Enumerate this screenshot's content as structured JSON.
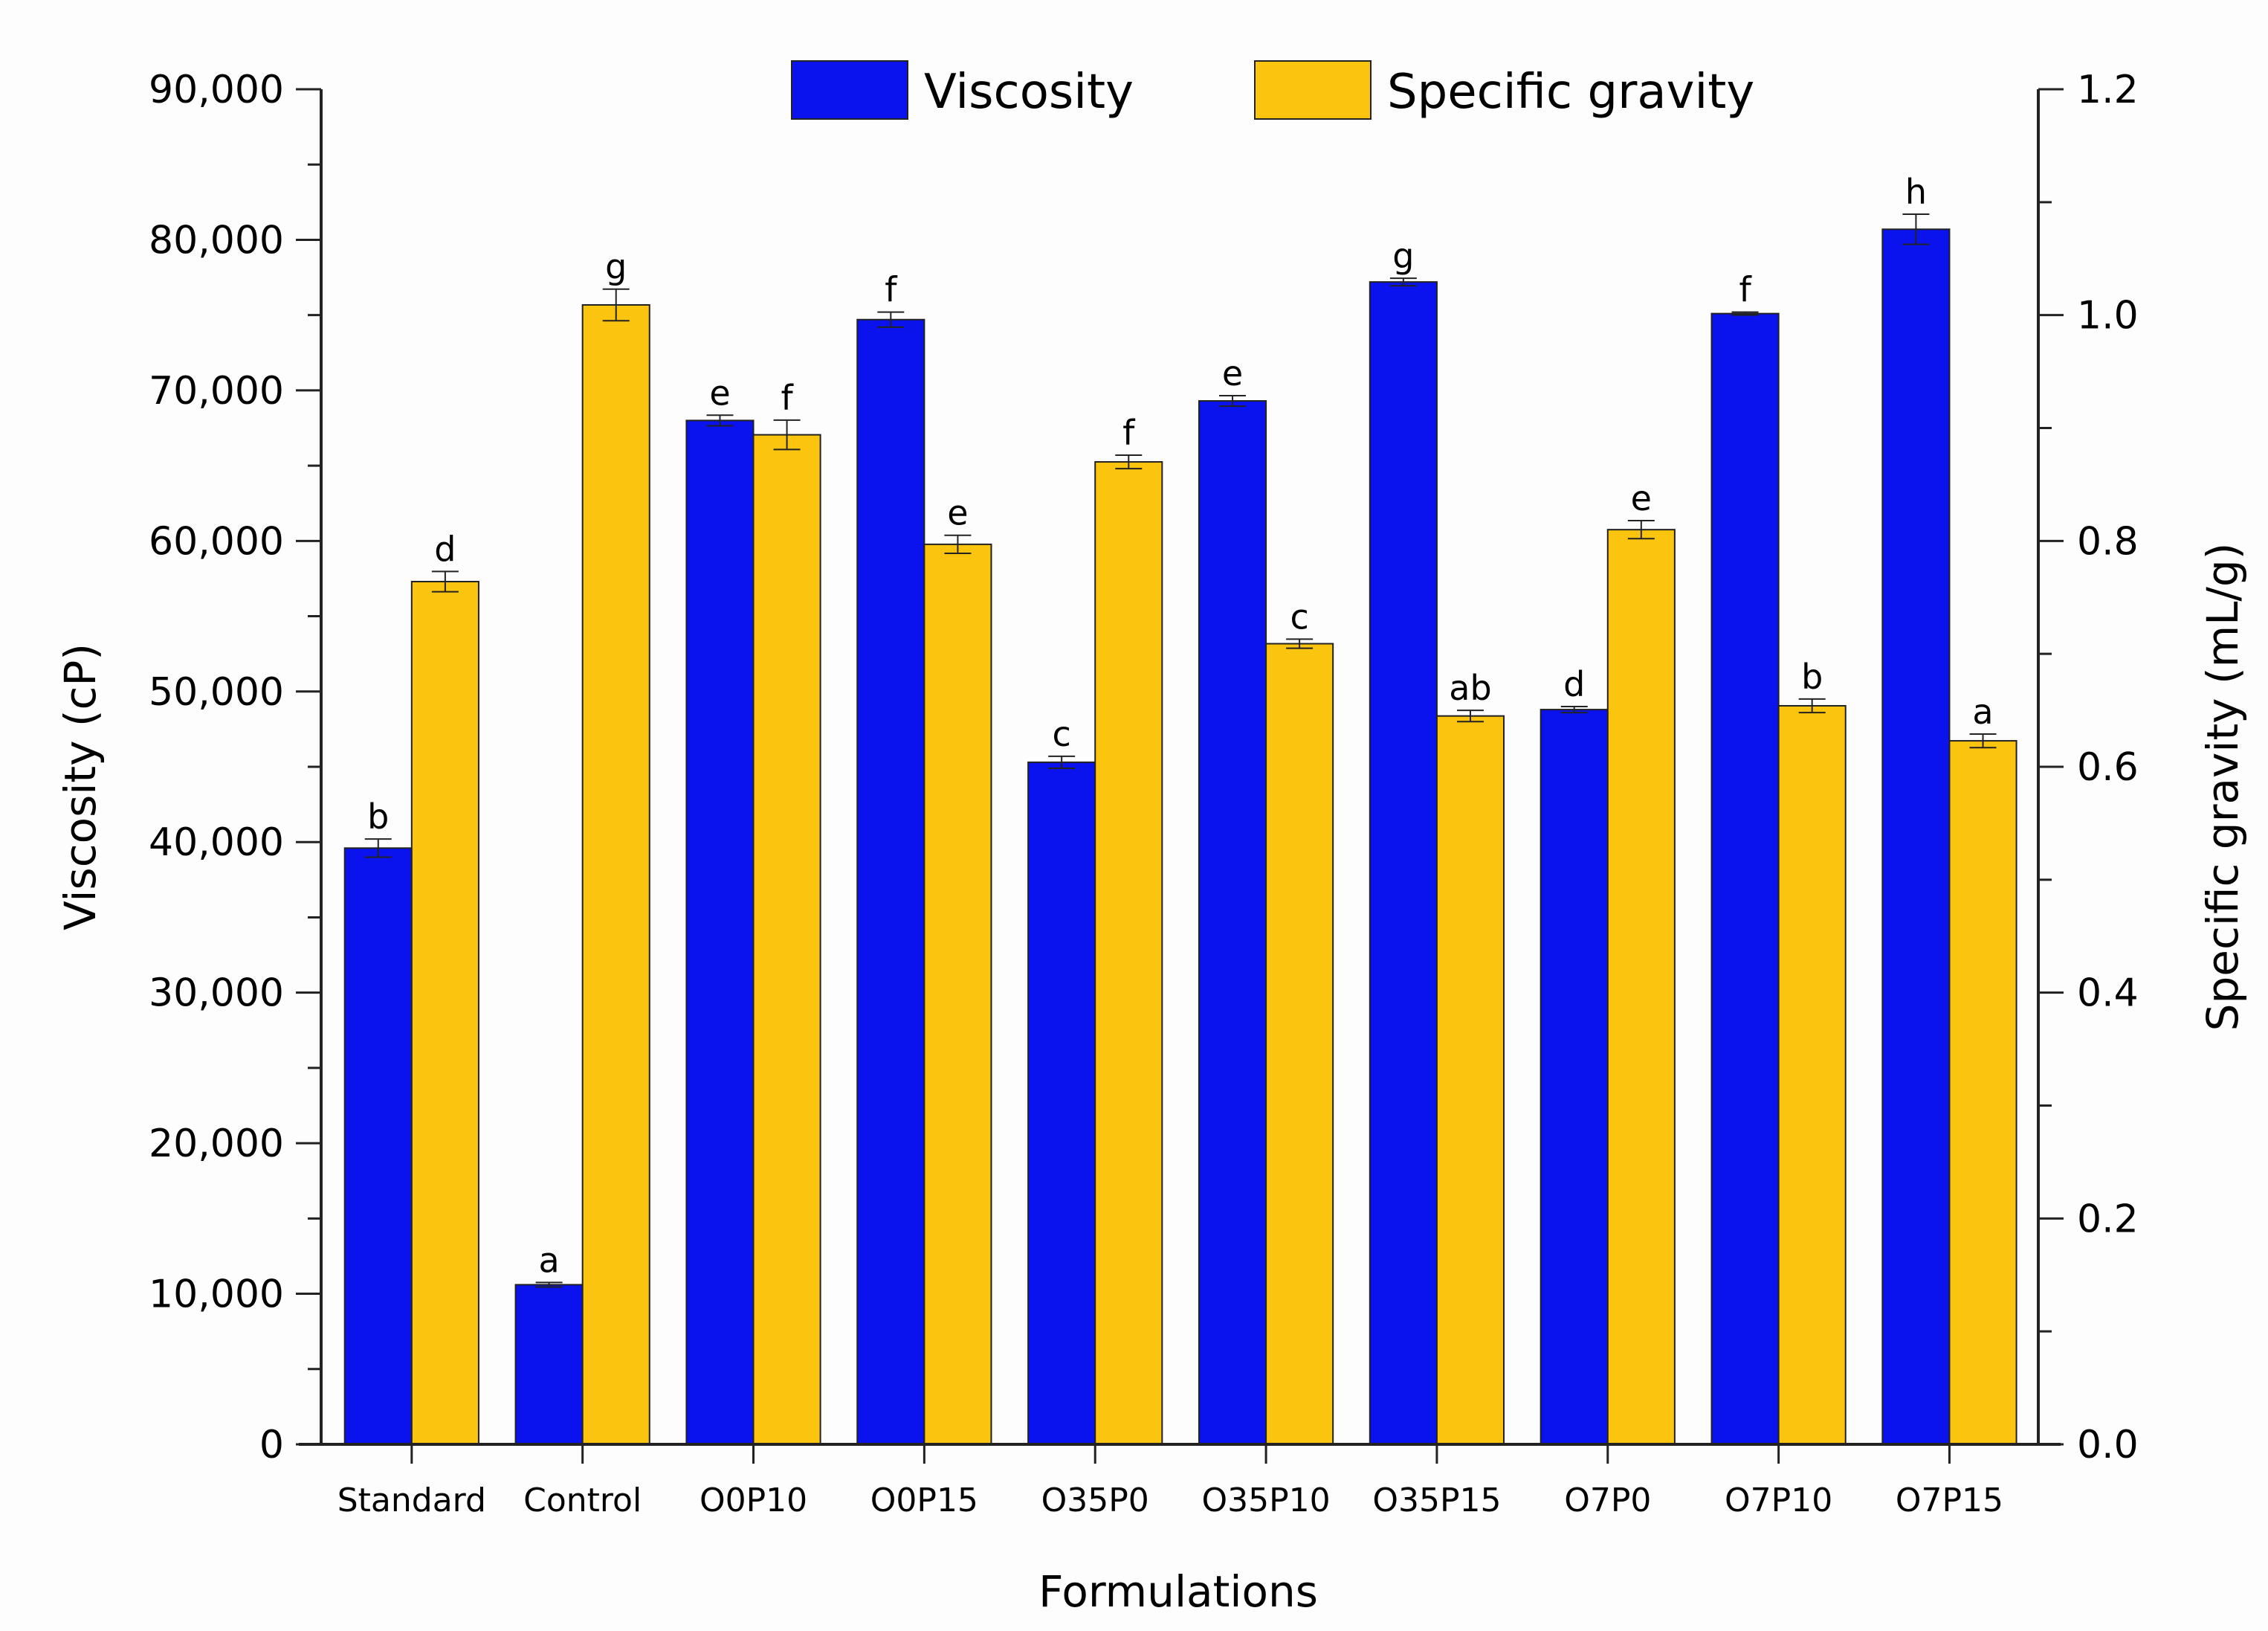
{
  "chart_data": {
    "type": "bar",
    "title": "",
    "xlabel": "Formulations",
    "ylabel": "Viscosity (cP)",
    "y2label": "Specific gravity (mL/g)",
    "ylim": [
      0,
      90000
    ],
    "y2lim": [
      0,
      1.2
    ],
    "yticks": [
      "0",
      "10,000",
      "20,000",
      "30,000",
      "40,000",
      "50,000",
      "60,000",
      "70,000",
      "80,000",
      "90,000"
    ],
    "y2ticks": [
      "0.0",
      "0.2",
      "0.4",
      "0.6",
      "0.8",
      "1.0",
      "1.2"
    ],
    "legend_position": "top-center",
    "categories": [
      "Standard",
      "Control",
      "O0P10",
      "O0P15",
      "O35P0",
      "O35P10",
      "O35P15",
      "O7P0",
      "O7P10",
      "O7P15"
    ],
    "series": [
      {
        "name": "Viscosity",
        "axis": "left",
        "color": "#0a12ee",
        "values": [
          39600,
          10600,
          68000,
          74700,
          45300,
          69300,
          77200,
          48800,
          75100,
          80700
        ],
        "errors": [
          600,
          150,
          350,
          500,
          400,
          350,
          250,
          200,
          100,
          1000
        ],
        "letters": [
          "b",
          "a",
          "e",
          "f",
          "c",
          "e",
          "g",
          "d",
          "f",
          "h"
        ]
      },
      {
        "name": "Specific gravity",
        "axis": "right",
        "color": "#fbc40f",
        "values": [
          0.764,
          1.009,
          0.894,
          0.797,
          0.87,
          0.709,
          0.645,
          0.81,
          0.654,
          0.623
        ],
        "errors": [
          0.009,
          0.014,
          0.013,
          0.008,
          0.006,
          0.004,
          0.005,
          0.008,
          0.006,
          0.006
        ],
        "letters": [
          "d",
          "g",
          "f",
          "e",
          "f",
          "c",
          "ab",
          "e",
          "b",
          "a"
        ]
      }
    ]
  }
}
